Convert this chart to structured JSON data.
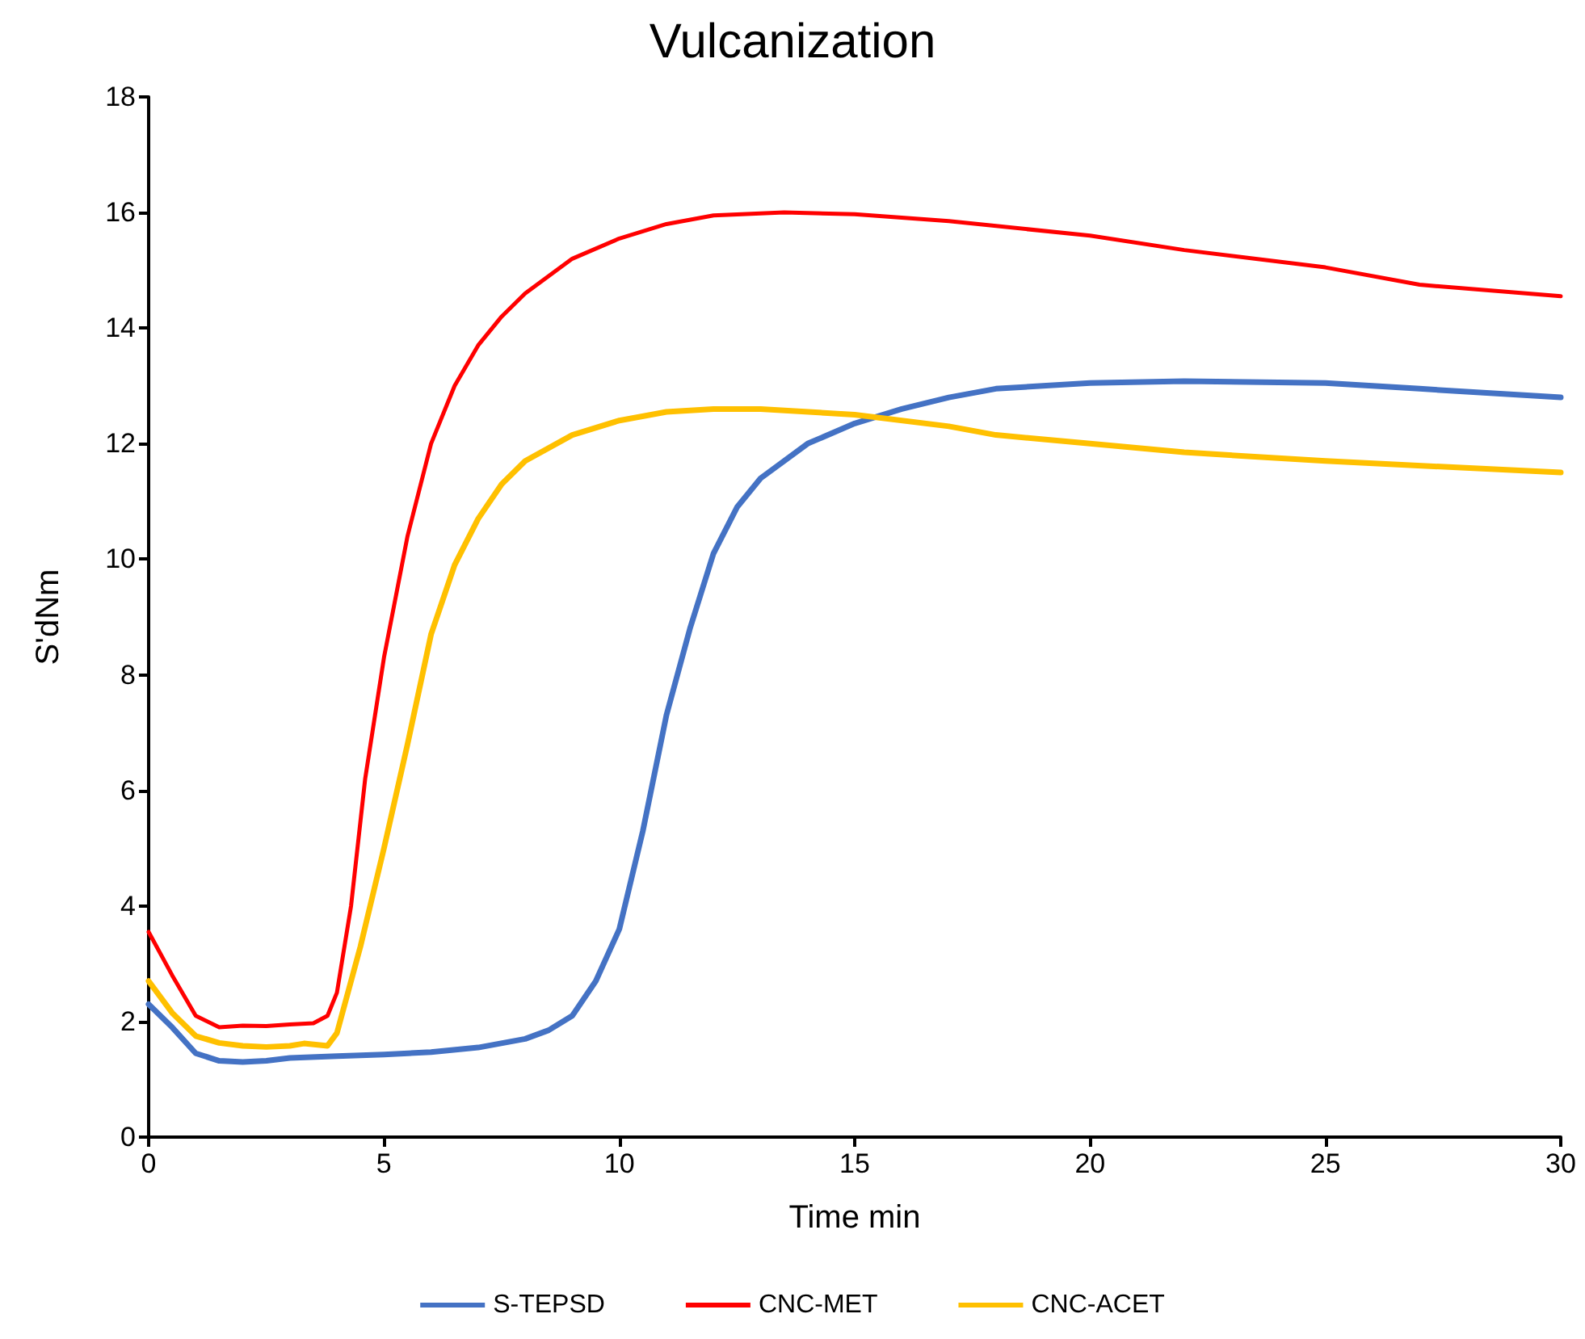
{
  "chart_data": {
    "type": "line",
    "title": "Vulcanization",
    "xlabel": "Time min",
    "ylabel": "S'dNm",
    "xlim": [
      0,
      30
    ],
    "xticks": [
      0,
      5,
      10,
      15,
      20,
      25,
      30
    ],
    "ylim": [
      0,
      18
    ],
    "yticks": [
      0,
      2,
      4,
      6,
      8,
      10,
      12,
      14,
      16,
      18
    ],
    "grid": false,
    "legend": "bottom",
    "marker": "none",
    "line_style": "solid",
    "series": [
      {
        "name": "S-TEPSD",
        "color": "#4472c4",
        "x": [
          0,
          0.5,
          1,
          1.5,
          2,
          2.5,
          3,
          4,
          5,
          6,
          7,
          8,
          8.5,
          9,
          9.5,
          10,
          10.5,
          11,
          11.5,
          12,
          12.5,
          13,
          14,
          15,
          16,
          17,
          18,
          20,
          22,
          25,
          27,
          30
        ],
        "values": [
          2.3,
          1.9,
          1.45,
          1.32,
          1.3,
          1.32,
          1.37,
          1.4,
          1.43,
          1.47,
          1.55,
          1.7,
          1.85,
          2.1,
          2.7,
          3.6,
          5.3,
          7.3,
          8.8,
          10.1,
          10.9,
          11.4,
          12.0,
          12.35,
          12.6,
          12.8,
          12.95,
          13.05,
          13.08,
          13.05,
          12.95,
          12.8
        ]
      },
      {
        "name": "CNC-MET",
        "color": "#ff0000",
        "x": [
          0,
          0.5,
          1,
          1.5,
          2,
          2.5,
          3,
          3.5,
          3.8,
          4,
          4.3,
          4.6,
          5,
          5.5,
          6,
          6.5,
          7,
          7.5,
          8,
          9,
          10,
          11,
          12,
          13.5,
          15,
          17,
          20,
          22,
          25,
          27,
          30
        ],
        "values": [
          3.55,
          2.8,
          2.1,
          1.9,
          1.93,
          1.92,
          1.95,
          1.97,
          2.1,
          2.5,
          4.0,
          6.2,
          8.3,
          10.4,
          12.0,
          13.0,
          13.7,
          14.2,
          14.6,
          15.2,
          15.55,
          15.8,
          15.95,
          16.0,
          15.97,
          15.85,
          15.6,
          15.35,
          15.05,
          14.75,
          14.55
        ]
      },
      {
        "name": "CNC-ACET",
        "color": "#ffc000",
        "x": [
          0,
          0.5,
          1,
          1.5,
          2,
          2.5,
          3,
          3.3,
          3.8,
          4,
          4.5,
          5,
          5.5,
          6,
          6.5,
          7,
          7.5,
          8,
          9,
          10,
          11,
          12,
          13,
          15,
          17,
          18,
          20,
          22,
          25,
          30
        ],
        "values": [
          2.7,
          2.15,
          1.75,
          1.63,
          1.58,
          1.56,
          1.58,
          1.62,
          1.58,
          1.8,
          3.3,
          5.0,
          6.8,
          8.7,
          9.9,
          10.7,
          11.3,
          11.7,
          12.15,
          12.4,
          12.55,
          12.6,
          12.6,
          12.5,
          12.3,
          12.15,
          12.0,
          11.85,
          11.7,
          11.5
        ]
      }
    ]
  }
}
